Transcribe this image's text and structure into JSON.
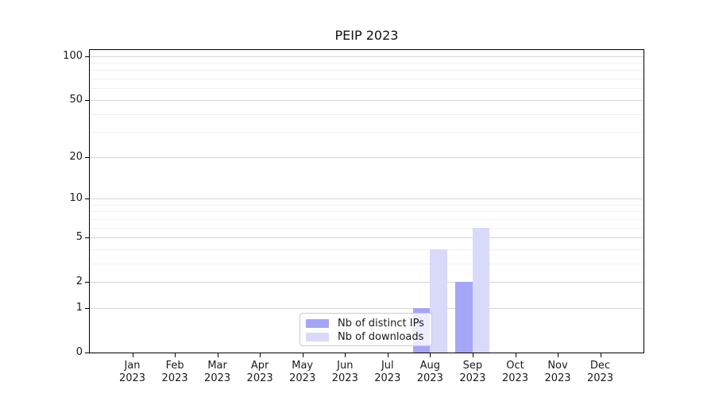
{
  "title": "PEIP 2023",
  "chart_data": {
    "type": "bar",
    "title": "PEIP 2023",
    "x_tick_labels": [
      {
        "month": "Jan",
        "year": "2023"
      },
      {
        "month": "Feb",
        "year": "2023"
      },
      {
        "month": "Mar",
        "year": "2023"
      },
      {
        "month": "Apr",
        "year": "2023"
      },
      {
        "month": "May",
        "year": "2023"
      },
      {
        "month": "Jun",
        "year": "2023"
      },
      {
        "month": "Jul",
        "year": "2023"
      },
      {
        "month": "Aug",
        "year": "2023"
      },
      {
        "month": "Sep",
        "year": "2023"
      },
      {
        "month": "Oct",
        "year": "2023"
      },
      {
        "month": "Nov",
        "year": "2023"
      },
      {
        "month": "Dec",
        "year": "2023"
      }
    ],
    "series": [
      {
        "name": "Nb of distinct IPs",
        "color": "#a6a6f6",
        "values": [
          0,
          0,
          0,
          0,
          0,
          0,
          0,
          1,
          2,
          0,
          0,
          0
        ]
      },
      {
        "name": "Nb of downloads",
        "color": "#d9d9f9",
        "values": [
          0,
          0,
          0,
          0,
          0,
          0,
          0,
          4,
          6,
          0,
          0,
          0
        ]
      }
    ],
    "y_axis": {
      "scale": "log10(value+1)",
      "major_ticks": [
        0,
        1,
        2,
        5,
        10,
        20,
        50,
        100
      ],
      "minor_gridlines": [
        3,
        4,
        6,
        7,
        8,
        9,
        30,
        40,
        60,
        70,
        80,
        90
      ],
      "range": [
        0,
        110
      ]
    },
    "grid": "horizontal-only",
    "legend_position": "inside-lower-center",
    "colors": {
      "major_gridline": "#d6d6d6",
      "minor_gridline": "#f0f0f0",
      "axis": "#000000",
      "text": "#1a1a1a"
    }
  }
}
